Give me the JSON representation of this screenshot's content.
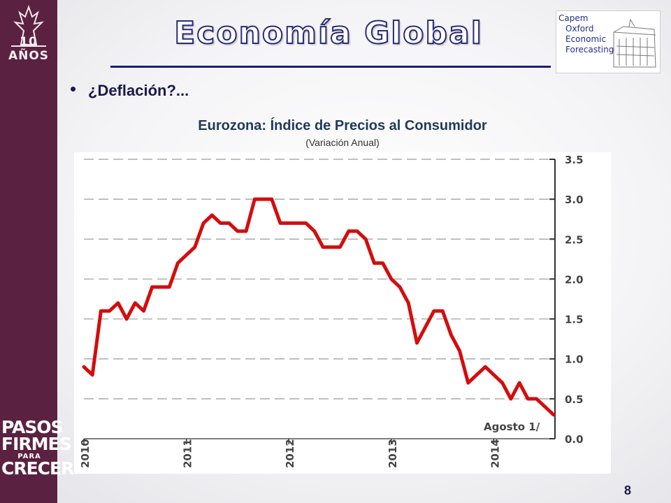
{
  "slide": {
    "title": "Economía Global",
    "bullet": "¿Deflación?...",
    "page_number": "8"
  },
  "sidebar": {
    "logo_text": "10 AÑOS",
    "slogan_line1": "PASOS",
    "slogan_line2": "FIRMES",
    "slogan_line3": "PARA",
    "slogan_line4": "CRECER"
  },
  "partner_logo": {
    "line1": "Capem",
    "line2": "Oxford",
    "line3": "Economic",
    "line4": "Forecasting"
  },
  "colors": {
    "sidebar": "#5a2240",
    "title_outline": "#2a2b7a",
    "series_line": "#d40d0d"
  },
  "chart_data": {
    "type": "line",
    "title": "Eurozona: Índice de Precios al Consumidor",
    "subtitle": "(Variación Anual)",
    "xlabel": "",
    "ylabel": "",
    "ylim": [
      0,
      3.5
    ],
    "y_ticks": [
      "0.0",
      "0.5",
      "1.0",
      "1.5",
      "2.0",
      "2.5",
      "3.0",
      "3.5"
    ],
    "x_ticks": [
      "2010",
      "2011",
      "2012",
      "2013",
      "2014"
    ],
    "grid": true,
    "annotation": "Agosto 1/",
    "series": [
      {
        "x": [
          "2010-01",
          "2010-02",
          "2010-03",
          "2010-04",
          "2010-05",
          "2010-06",
          "2010-07",
          "2010-08",
          "2010-09",
          "2010-10",
          "2010-11",
          "2010-12",
          "2011-01",
          "2011-02",
          "2011-03",
          "2011-04",
          "2011-05",
          "2011-06",
          "2011-07",
          "2011-08",
          "2011-09",
          "2011-10",
          "2011-11",
          "2011-12",
          "2012-01",
          "2012-02",
          "2012-03",
          "2012-04",
          "2012-05",
          "2012-06",
          "2012-07",
          "2012-08",
          "2012-09",
          "2012-10",
          "2012-11",
          "2012-12",
          "2013-01",
          "2013-02",
          "2013-03",
          "2013-04",
          "2013-05",
          "2013-06",
          "2013-07",
          "2013-08",
          "2013-09",
          "2013-10",
          "2013-11",
          "2013-12",
          "2014-01",
          "2014-02",
          "2014-03",
          "2014-04",
          "2014-05",
          "2014-06",
          "2014-07",
          "2014-08"
        ],
        "values": [
          0.9,
          0.8,
          1.6,
          1.6,
          1.7,
          1.5,
          1.7,
          1.6,
          1.9,
          1.9,
          1.9,
          2.2,
          2.3,
          2.4,
          2.7,
          2.8,
          2.7,
          2.7,
          2.6,
          2.6,
          3.0,
          3.0,
          3.0,
          2.7,
          2.7,
          2.7,
          2.7,
          2.6,
          2.4,
          2.4,
          2.4,
          2.6,
          2.6,
          2.5,
          2.2,
          2.2,
          2.0,
          1.9,
          1.7,
          1.2,
          1.4,
          1.6,
          1.6,
          1.3,
          1.1,
          0.7,
          0.8,
          0.9,
          0.8,
          0.7,
          0.5,
          0.7,
          0.5,
          0.5,
          0.4,
          0.3
        ]
      }
    ]
  }
}
